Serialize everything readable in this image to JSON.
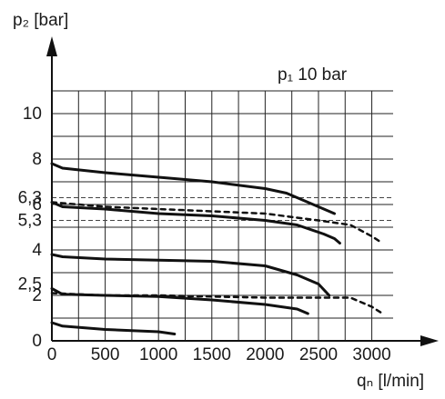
{
  "chart_data": {
    "type": "line",
    "title": "",
    "annotation": "p₁ 10 bar",
    "ylabel": "p₂ [bar]",
    "xlabel": "qₙ [l/min]",
    "xlim": [
      0,
      3200
    ],
    "ylim": [
      0,
      11
    ],
    "grid": true,
    "x_ticks": [
      0,
      500,
      1000,
      1500,
      2000,
      2500,
      3000
    ],
    "x_tick_labels": [
      "0",
      "500",
      "1000",
      "1500",
      "2000",
      "2500",
      "3000"
    ],
    "y_ticks": [
      0,
      2,
      2.5,
      4,
      5.3,
      6,
      6.3,
      8,
      10
    ],
    "y_tick_labels": [
      "0",
      "2",
      "2,5",
      "4",
      "5,3",
      "6",
      "6,3",
      "8",
      "10"
    ],
    "reference_lines": [
      6.3,
      5.3
    ],
    "series": [
      {
        "style": "solid",
        "points": [
          [
            0,
            7.8
          ],
          [
            100,
            7.6
          ],
          [
            500,
            7.4
          ],
          [
            1000,
            7.2
          ],
          [
            1500,
            7.0
          ],
          [
            2000,
            6.7
          ],
          [
            2200,
            6.5
          ],
          [
            2400,
            6.1
          ],
          [
            2600,
            5.7
          ],
          [
            2650,
            5.6
          ]
        ]
      },
      {
        "style": "solid",
        "points": [
          [
            0,
            6.1
          ],
          [
            100,
            5.9
          ],
          [
            500,
            5.8
          ],
          [
            1000,
            5.6
          ],
          [
            1500,
            5.5
          ],
          [
            2000,
            5.3
          ],
          [
            2300,
            5.1
          ],
          [
            2550,
            4.7
          ],
          [
            2650,
            4.5
          ],
          [
            2700,
            4.3
          ]
        ]
      },
      {
        "style": "dashed",
        "points": [
          [
            0,
            6.1
          ],
          [
            500,
            5.9
          ],
          [
            1000,
            5.8
          ],
          [
            1500,
            5.7
          ],
          [
            2000,
            5.6
          ],
          [
            2500,
            5.3
          ],
          [
            2800,
            5.1
          ],
          [
            3000,
            4.6
          ],
          [
            3100,
            4.3
          ]
        ]
      },
      {
        "style": "solid",
        "points": [
          [
            0,
            3.8
          ],
          [
            100,
            3.7
          ],
          [
            500,
            3.6
          ],
          [
            1000,
            3.55
          ],
          [
            1500,
            3.5
          ],
          [
            2000,
            3.3
          ],
          [
            2300,
            2.9
          ],
          [
            2500,
            2.5
          ],
          [
            2600,
            2.0
          ]
        ]
      },
      {
        "style": "solid",
        "points": [
          [
            0,
            2.3
          ],
          [
            100,
            2.05
          ],
          [
            500,
            2.0
          ],
          [
            1000,
            1.95
          ],
          [
            1500,
            1.8
          ],
          [
            2000,
            1.6
          ],
          [
            2300,
            1.4
          ],
          [
            2400,
            1.2
          ]
        ]
      },
      {
        "style": "dashed",
        "points": [
          [
            0,
            2.1
          ],
          [
            500,
            2.0
          ],
          [
            1000,
            2.0
          ],
          [
            1500,
            1.95
          ],
          [
            2000,
            1.9
          ],
          [
            2500,
            1.9
          ],
          [
            2800,
            1.9
          ],
          [
            3000,
            1.5
          ],
          [
            3100,
            1.2
          ]
        ]
      },
      {
        "style": "solid",
        "points": [
          [
            0,
            0.8
          ],
          [
            100,
            0.65
          ],
          [
            500,
            0.5
          ],
          [
            1000,
            0.4
          ],
          [
            1150,
            0.3
          ]
        ]
      }
    ]
  }
}
